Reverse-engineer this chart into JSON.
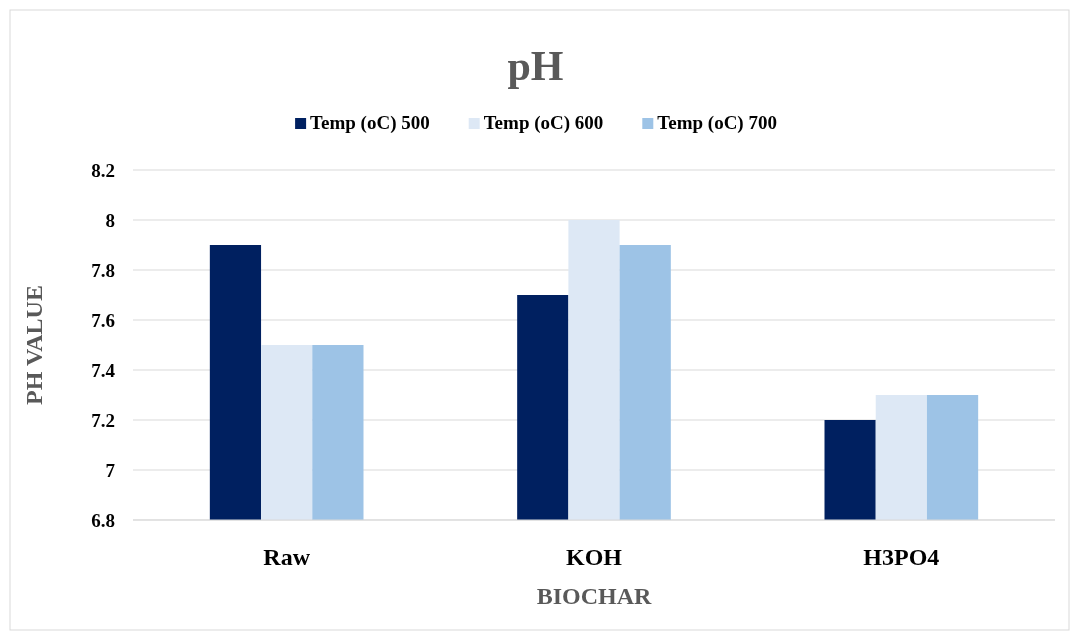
{
  "chart_data": {
    "type": "bar",
    "title": "pH",
    "xlabel": "BIOCHAR",
    "ylabel": "PH VALUE",
    "categories": [
      "Raw",
      "KOH",
      "H3PO4"
    ],
    "series": [
      {
        "name": "Temp (oC) 500",
        "color": "#002060",
        "values": [
          7.9,
          7.7,
          7.2
        ]
      },
      {
        "name": "Temp (oC) 600",
        "color": "#dde8f5",
        "values": [
          7.5,
          8.0,
          7.3
        ]
      },
      {
        "name": "Temp (oC) 700",
        "color": "#9dc3e6",
        "values": [
          7.5,
          7.9,
          7.3
        ]
      }
    ],
    "ylim": [
      6.8,
      8.2
    ],
    "yticks": [
      6.8,
      7,
      7.2,
      7.4,
      7.6,
      7.8,
      8,
      8.2
    ],
    "grid": "y",
    "legend": "top"
  }
}
